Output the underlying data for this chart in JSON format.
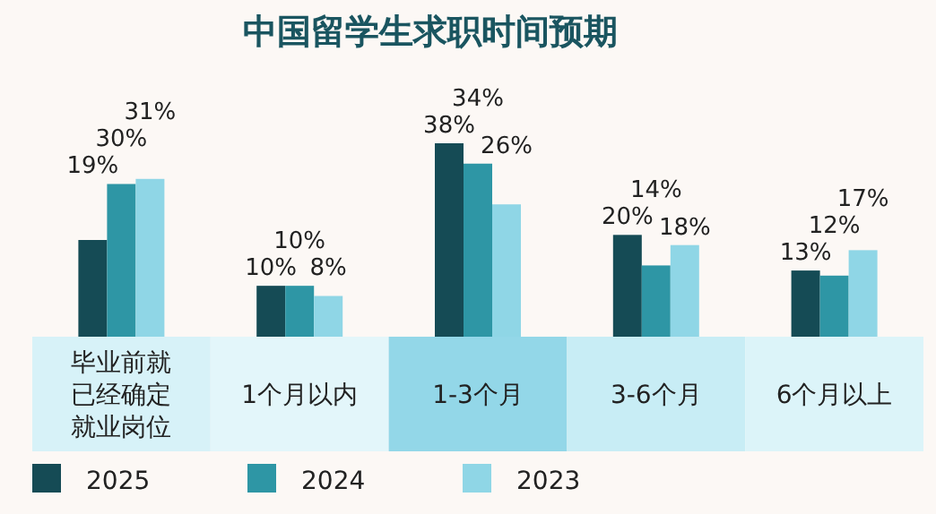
{
  "chart_data": {
    "type": "bar",
    "title": "中国留学生求职时间预期",
    "categories": [
      "毕业前就已经确定就业岗位",
      "1个月以内",
      "1-3个月",
      "3-6个月",
      "6个月以上"
    ],
    "series": [
      {
        "name": "2025",
        "color": "#154b55",
        "values": [
          19,
          10,
          38,
          20,
          13
        ],
        "value_labels": [
          "19%",
          "10%",
          "38%",
          "20%",
          "13%"
        ]
      },
      {
        "name": "2024",
        "color": "#2e96a5",
        "values": [
          30,
          10,
          34,
          14,
          12
        ],
        "value_labels": [
          "30%",
          "10%",
          "34%",
          "14%",
          "12%"
        ]
      },
      {
        "name": "2023",
        "color": "#8fd6e6",
        "values": [
          31,
          8,
          26,
          18,
          17
        ],
        "value_labels": [
          "31%",
          "8%",
          "26%",
          "18%",
          "17%"
        ]
      }
    ],
    "legend": "bottom"
  }
}
